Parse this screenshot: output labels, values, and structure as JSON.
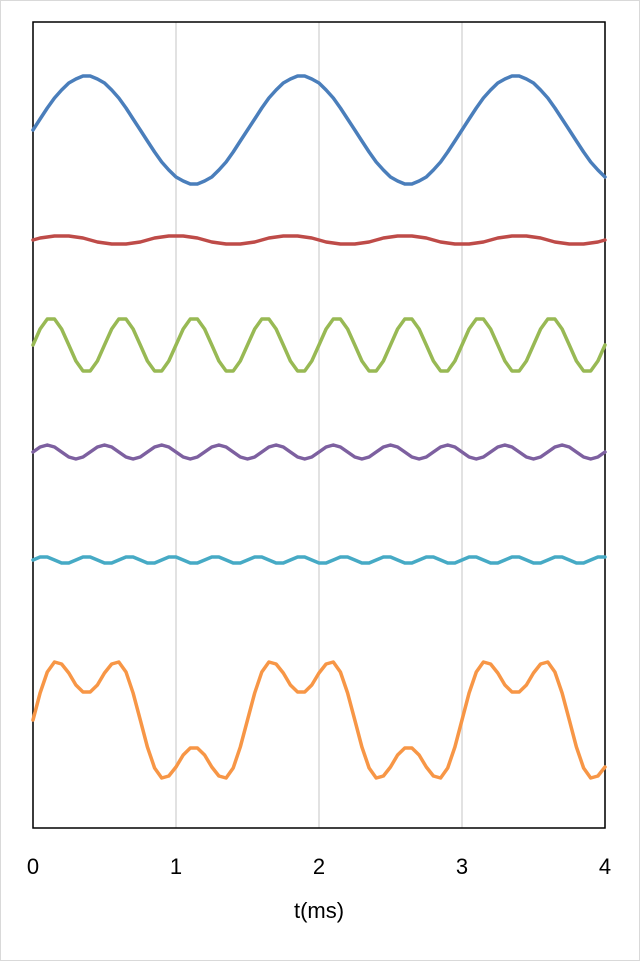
{
  "chart_data": {
    "type": "line",
    "x_label": "t(ms)",
    "xlim": [
      0,
      4
    ],
    "xticks": [
      0,
      1,
      2,
      3,
      4
    ],
    "ylim": [
      0,
      806
    ],
    "grid": true,
    "x": [
      0,
      0.05,
      0.1,
      0.15,
      0.2,
      0.25,
      0.3,
      0.35,
      0.4,
      0.45,
      0.5,
      0.55,
      0.6,
      0.65,
      0.7,
      0.75,
      0.8,
      0.85,
      0.9,
      0.95,
      1,
      1.05,
      1.1,
      1.15,
      1.2,
      1.25,
      1.3,
      1.35,
      1.4,
      1.45,
      1.5,
      1.55,
      1.6,
      1.65,
      1.7,
      1.75,
      1.8,
      1.85,
      1.9,
      1.95,
      2,
      2.05,
      2.1,
      2.15,
      2.2,
      2.25,
      2.3,
      2.35,
      2.4,
      2.45,
      2.5,
      2.55,
      2.6,
      2.65,
      2.7,
      2.75,
      2.8,
      2.85,
      2.9,
      2.95,
      3,
      3.05,
      3.1,
      3.15,
      3.2,
      3.25,
      3.3,
      3.35,
      3.4,
      3.45,
      3.5,
      3.55,
      3.6,
      3.65,
      3.7,
      3.75,
      3.8,
      3.85,
      3.9,
      3.95,
      4
    ],
    "series": [
      {
        "color": "#4a7ebb",
        "values": [
          698,
          709,
          720,
          730,
          738,
          745,
          749,
          752,
          752,
          749,
          745,
          738,
          730,
          720,
          709,
          698,
          687,
          676,
          666,
          658,
          651,
          647,
          644,
          644,
          647,
          651,
          658,
          666,
          676,
          687,
          698,
          709,
          720,
          730,
          738,
          745,
          749,
          752,
          752,
          749,
          745,
          738,
          730,
          720,
          709,
          698,
          687,
          676,
          666,
          658,
          651,
          647,
          644,
          644,
          647,
          651,
          658,
          666,
          676,
          687,
          698,
          709,
          720,
          730,
          738,
          745,
          749,
          752,
          752,
          749,
          745,
          738,
          730,
          720,
          709,
          698,
          687,
          676,
          666,
          658,
          651
        ]
      },
      {
        "color": "#be4b48",
        "values": [
          588,
          590,
          591,
          592,
          592,
          592,
          591,
          590,
          588,
          586,
          585,
          584,
          584,
          584,
          585,
          586,
          588,
          590,
          591,
          592,
          592,
          592,
          591,
          590,
          588,
          586,
          585,
          584,
          584,
          584,
          585,
          586,
          588,
          590,
          591,
          592,
          592,
          592,
          591,
          590,
          588,
          586,
          585,
          584,
          584,
          584,
          585,
          586,
          588,
          590,
          591,
          592,
          592,
          592,
          591,
          590,
          588,
          586,
          585,
          584,
          584,
          584,
          585,
          586,
          588,
          590,
          591,
          592,
          592,
          592,
          591,
          590,
          588,
          586,
          585,
          584,
          584,
          584,
          585,
          586,
          588
        ]
      },
      {
        "color": "#98b954",
        "values": [
          483,
          499,
          509,
          509,
          499,
          483,
          467,
          457,
          457,
          467,
          483,
          499,
          509,
          509,
          499,
          483,
          467,
          457,
          457,
          467,
          483,
          499,
          509,
          509,
          499,
          483,
          467,
          457,
          457,
          467,
          483,
          499,
          509,
          509,
          499,
          483,
          467,
          457,
          457,
          467,
          483,
          499,
          509,
          509,
          499,
          483,
          467,
          457,
          457,
          467,
          483,
          499,
          509,
          509,
          499,
          483,
          467,
          457,
          457,
          467,
          483,
          499,
          509,
          509,
          499,
          483,
          467,
          457,
          457,
          467,
          483,
          499,
          509,
          509,
          499,
          483,
          467,
          457,
          457,
          467,
          483
        ]
      },
      {
        "color": "#7d60a0",
        "values": [
          376,
          381,
          383,
          381,
          376,
          371,
          369,
          371,
          376,
          381,
          383,
          381,
          376,
          371,
          369,
          371,
          376,
          381,
          383,
          381,
          376,
          371,
          369,
          371,
          376,
          381,
          383,
          381,
          376,
          371,
          369,
          371,
          376,
          381,
          383,
          381,
          376,
          371,
          369,
          371,
          376,
          381,
          383,
          381,
          376,
          371,
          369,
          371,
          376,
          381,
          383,
          381,
          376,
          371,
          369,
          371,
          376,
          381,
          383,
          381,
          376,
          371,
          369,
          371,
          376,
          381,
          383,
          381,
          376,
          371,
          369,
          371,
          376,
          381,
          383,
          381,
          376,
          371,
          369,
          371,
          376
        ]
      },
      {
        "color": "#46aac5",
        "values": [
          268,
          271,
          271,
          268,
          265,
          265,
          268,
          271,
          271,
          268,
          265,
          265,
          268,
          271,
          271,
          268,
          265,
          265,
          268,
          271,
          271,
          268,
          265,
          265,
          268,
          271,
          271,
          268,
          265,
          265,
          268,
          271,
          271,
          268,
          265,
          265,
          268,
          271,
          271,
          268,
          265,
          265,
          268,
          271,
          271,
          268,
          265,
          265,
          268,
          271,
          271,
          268,
          265,
          265,
          268,
          271,
          271,
          268,
          265,
          265,
          268,
          271,
          271,
          268,
          265,
          265,
          268,
          271,
          271,
          268,
          265,
          265,
          268,
          271,
          271,
          268,
          265,
          265,
          268,
          271,
          271
        ]
      },
      {
        "color": "#f79646",
        "values": [
          108,
          135,
          156,
          166,
          164,
          155,
          143,
          136,
          136,
          143,
          155,
          164,
          166,
          156,
          135,
          108,
          81,
          60,
          50,
          52,
          61,
          73,
          80,
          80,
          73,
          61,
          52,
          50,
          60,
          81,
          108,
          135,
          156,
          166,
          164,
          155,
          143,
          136,
          136,
          143,
          155,
          164,
          166,
          156,
          135,
          108,
          81,
          60,
          50,
          52,
          61,
          73,
          80,
          80,
          73,
          61,
          52,
          50,
          60,
          81,
          108,
          135,
          156,
          166,
          164,
          155,
          143,
          136,
          136,
          143,
          155,
          164,
          166,
          156,
          135,
          108,
          81,
          60,
          50,
          52,
          61
        ]
      }
    ]
  }
}
